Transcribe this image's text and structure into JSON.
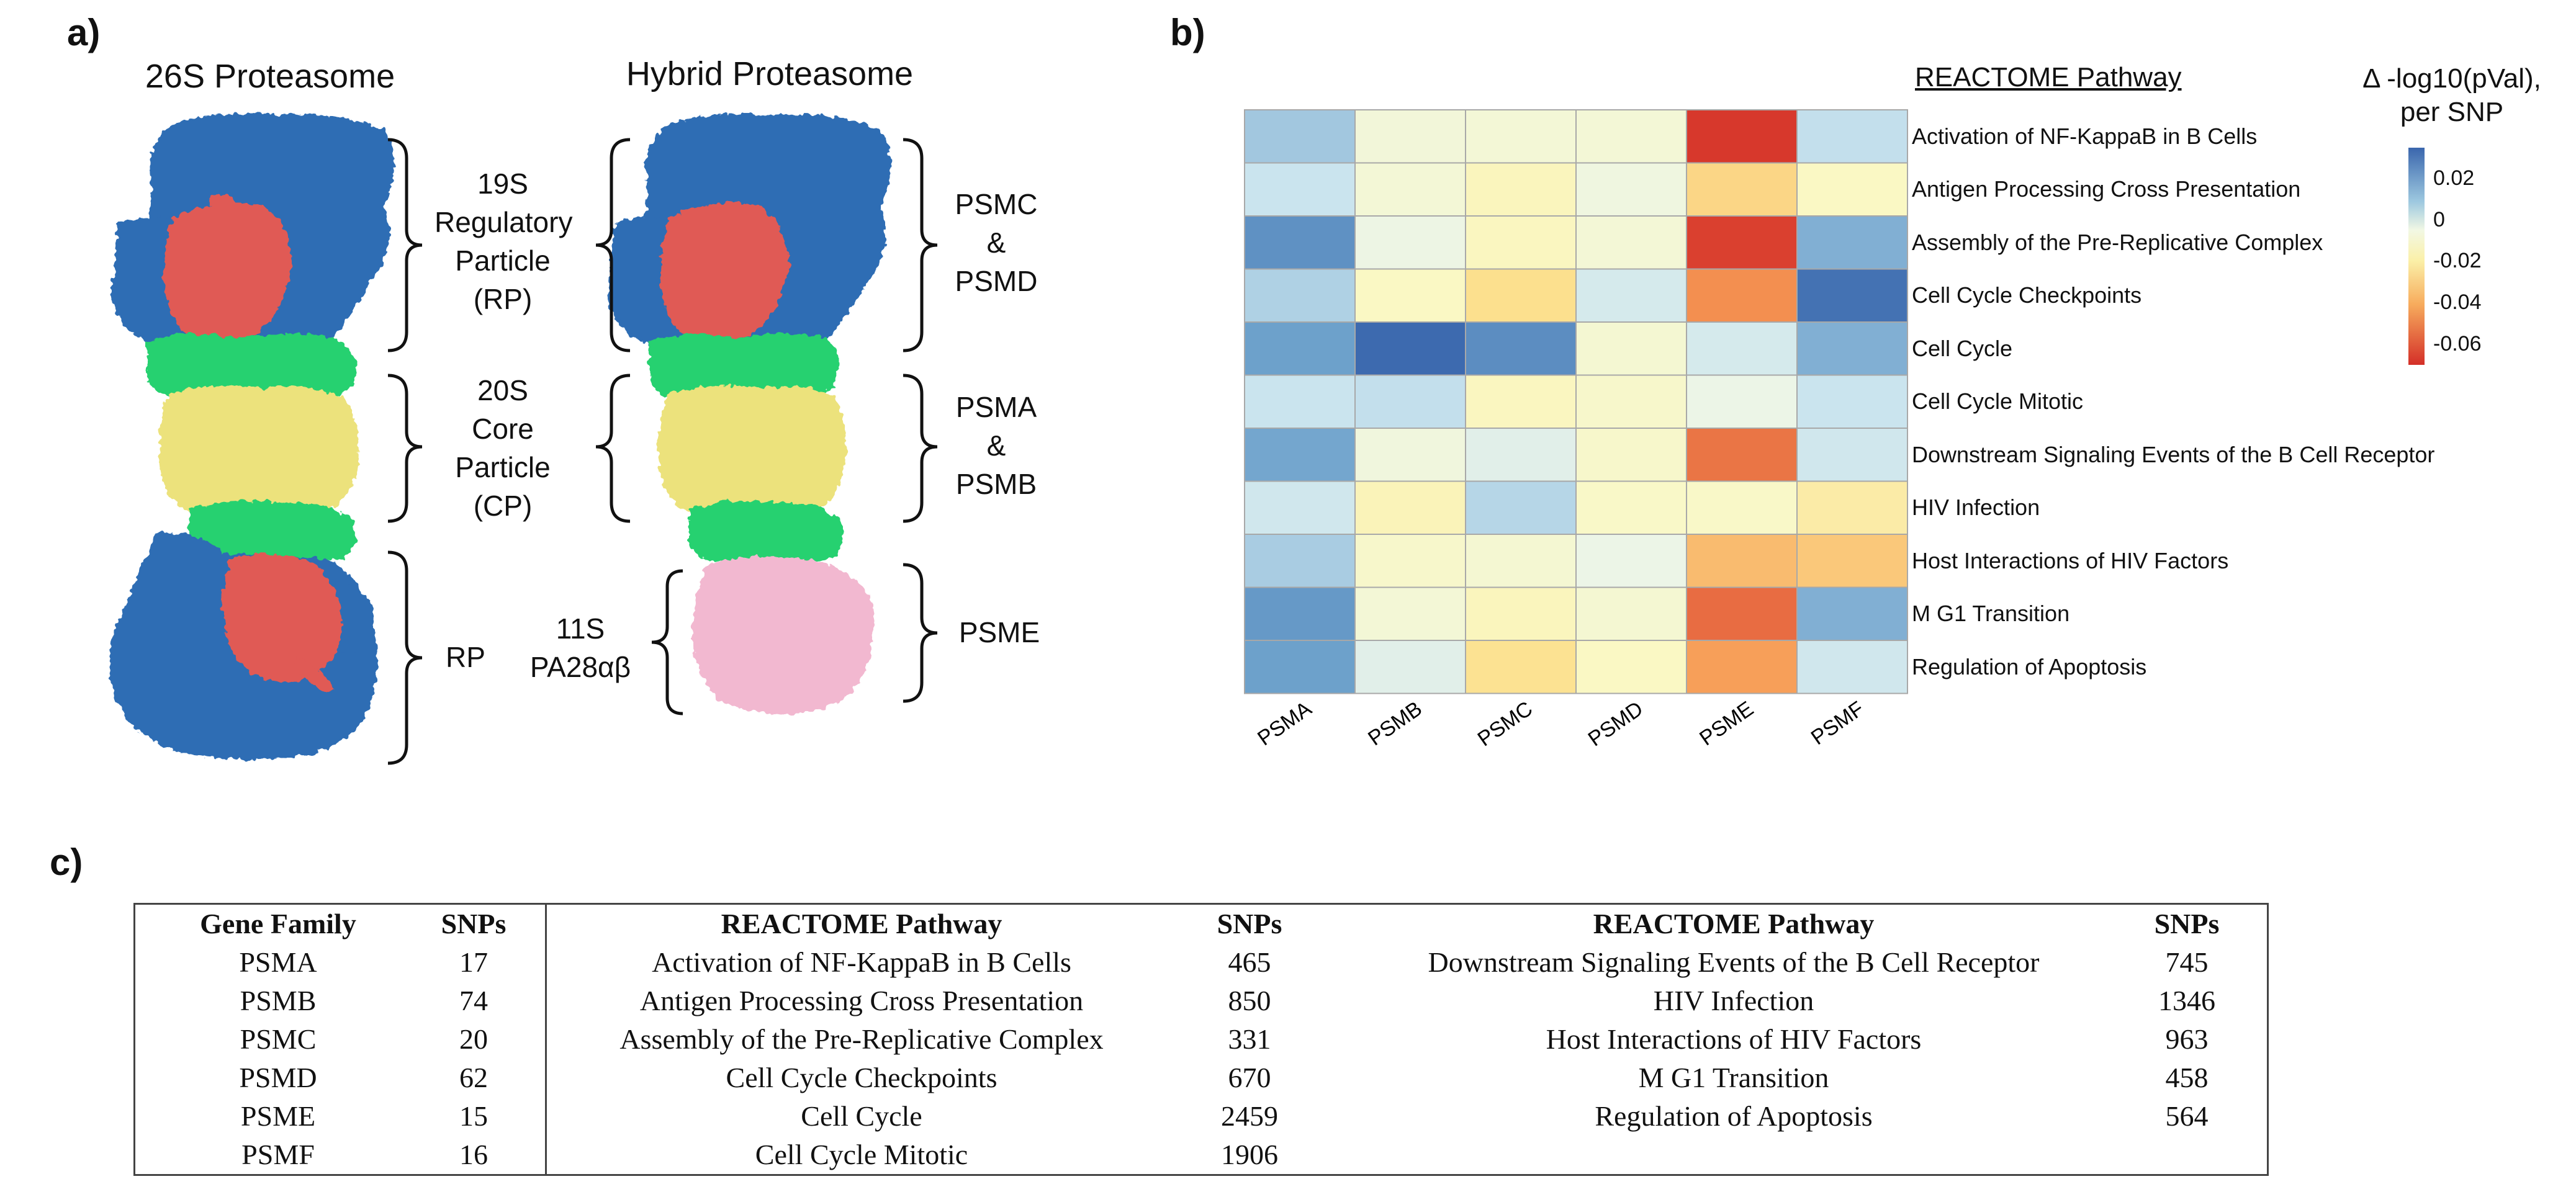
{
  "panels": {
    "a": "a)",
    "b": "b)",
    "c": "c)"
  },
  "panel_a": {
    "left_title": "26S Proteasome",
    "right_title": "Hybrid Proteasome",
    "labels": {
      "rp_top": [
        "19S",
        "Regulatory",
        "Particle",
        "(RP)"
      ],
      "cp": [
        "20S",
        "Core",
        "Particle",
        "(CP)"
      ],
      "rp_bottom": "RP",
      "pa28": [
        "11S",
        "PA28αβ"
      ],
      "psmc_psmd": [
        "PSMC",
        "&",
        "PSMD"
      ],
      "psma_psmb": [
        "PSMA",
        "&",
        "PSMB"
      ],
      "psme": "PSME"
    },
    "colors": {
      "rp": "#2e6db4",
      "lid": "#e05a55",
      "alpha_ring": "#27d16f",
      "beta_ring": "#ece27b",
      "pa28": "#f2b8d0"
    }
  },
  "chart_data": {
    "type": "heatmap",
    "title": "REACTOME Pathway",
    "x": [
      "PSMA",
      "PSMB",
      "PSMC",
      "PSMD",
      "PSME",
      "PSMF"
    ],
    "y": [
      "Activation of NF-KappaB in B Cells",
      "Antigen Processing Cross Presentation",
      "Assembly of the Pre-Replicative Complex",
      "Cell Cycle Checkpoints",
      "Cell Cycle",
      "Cell Cycle Mitotic",
      "Downstream Signaling Events of the B Cell Receptor",
      "HIV Infection",
      "Host Interactions of HIV Factors",
      "M G1 Transition",
      "Regulation of Apoptosis"
    ],
    "values": [
      [
        0.012,
        -0.004,
        -0.005,
        -0.005,
        -0.068,
        0.007
      ],
      [
        0.006,
        -0.005,
        -0.012,
        -0.002,
        -0.028,
        -0.01
      ],
      [
        0.024,
        -0.001,
        -0.011,
        -0.005,
        -0.066,
        0.017
      ],
      [
        0.01,
        -0.01,
        -0.025,
        0.004,
        -0.048,
        0.032
      ],
      [
        0.02,
        0.034,
        0.025,
        -0.006,
        0.004,
        0.017
      ],
      [
        0.006,
        0.007,
        -0.011,
        -0.008,
        0.0,
        0.006
      ],
      [
        0.019,
        -0.003,
        0.002,
        -0.008,
        -0.054,
        0.005
      ],
      [
        0.005,
        -0.013,
        0.009,
        -0.009,
        -0.009,
        -0.018
      ],
      [
        0.011,
        -0.008,
        -0.006,
        0.0,
        -0.036,
        -0.032
      ],
      [
        0.022,
        -0.005,
        -0.012,
        -0.006,
        -0.056,
        0.017
      ],
      [
        0.02,
        0.002,
        -0.024,
        -0.01,
        -0.044,
        0.005
      ]
    ],
    "colorbar": {
      "label": [
        "Δ -log10(pVal),",
        "per SNP"
      ],
      "ticks": [
        0.02,
        0,
        -0.02,
        -0.04,
        -0.06
      ],
      "tick_labels": [
        "0.02",
        "0",
        "-0.02",
        "-0.04",
        "-0.06"
      ],
      "range": [
        -0.07,
        0.035
      ]
    }
  },
  "table": {
    "headers": [
      "Gene Family",
      "SNPs",
      "REACTOME Pathway",
      "SNPs",
      "REACTOME Pathway",
      "SNPs"
    ],
    "rows": [
      [
        "PSMA",
        "17",
        "Activation of NF-KappaB in B Cells",
        "465",
        "Downstream Signaling Events of the B Cell Receptor",
        "745"
      ],
      [
        "PSMB",
        "74",
        "Antigen Processing Cross Presentation",
        "850",
        "HIV Infection",
        "1346"
      ],
      [
        "PSMC",
        "20",
        "Assembly of the Pre-Replicative Complex",
        "331",
        "Host Interactions of HIV Factors",
        "963"
      ],
      [
        "PSMD",
        "62",
        "Cell Cycle Checkpoints",
        "670",
        "M G1 Transition",
        "458"
      ],
      [
        "PSME",
        "15",
        "Cell Cycle",
        "2459",
        "Regulation of Apoptosis",
        "564"
      ],
      [
        "PSMF",
        "16",
        "Cell Cycle Mitotic",
        "1906",
        "",
        ""
      ]
    ]
  }
}
